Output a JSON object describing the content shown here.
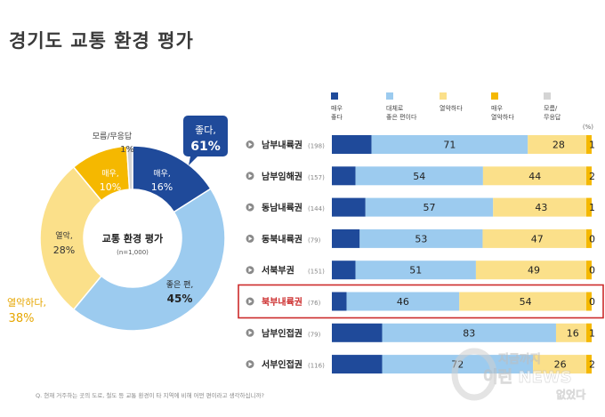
{
  "title": "경기도 교통 환경 평가",
  "footnote": "Q. 현재 거주하는 곳의 도로, 철도 등 교통 환경이 타 지역에 비해 어떤 편이라고 생각하십니까?",
  "watermark": {
    "line1": "지금까지",
    "line2": "이런 NEWS",
    "line3": "없었다"
  },
  "colors": {
    "very_good": "#1f4a9a",
    "good": "#9ccbef",
    "bad": "#fbe08a",
    "very_bad": "#f5b800",
    "dk": "#d4d4d4",
    "highlight": "#cc2b2b"
  },
  "chart_data": [
    {
      "type": "pie",
      "center_title": "교통 환경 평가",
      "center_sub": "(n=1,000)",
      "slices": [
        {
          "key": "very_good",
          "label": "매우,",
          "value": 16,
          "value_text": "16%"
        },
        {
          "key": "good",
          "label": "좋은 편,",
          "value": 45,
          "value_text": "45%"
        },
        {
          "key": "bad",
          "label": "열악,",
          "value": 28,
          "value_text": "28%"
        },
        {
          "key": "very_bad",
          "label": "매우,",
          "value": 10,
          "value_text": "10%"
        },
        {
          "key": "dk",
          "label": "모름/무응답",
          "value": 1,
          "value_text": "1%"
        }
      ],
      "callout_good": {
        "label": "좋다,",
        "value": "61%"
      },
      "callout_bad": {
        "label": "열악하다,",
        "value": "38%"
      }
    },
    {
      "type": "bar",
      "stacked": true,
      "orientation": "horizontal",
      "percent_label": "(%)",
      "legend": [
        {
          "key": "very_good",
          "label": [
            "매우",
            "좋다"
          ]
        },
        {
          "key": "good",
          "label": [
            "대체로",
            "좋은 편이다"
          ]
        },
        {
          "key": "bad",
          "label": [
            "열악하다"
          ]
        },
        {
          "key": "very_bad",
          "label": [
            "매우",
            "열악하다"
          ]
        },
        {
          "key": "dk",
          "label": [
            "모름/",
            "무응답"
          ]
        }
      ],
      "highlight_row": "북부내륙권",
      "rows": [
        {
          "name": "남부내륙권",
          "n": "(198)",
          "very_good": 18,
          "good": 71,
          "bad": 28,
          "very_bad": 0,
          "dk": 1,
          "good_label": "71",
          "bad_label": "28",
          "dk_label": "1"
        },
        {
          "name": "남부임해권",
          "n": "(157)",
          "very_good": 10,
          "good": 54,
          "bad": 44,
          "very_bad": 0,
          "dk": 2,
          "good_label": "54",
          "bad_label": "44",
          "dk_label": "2"
        },
        {
          "name": "동남내륙권",
          "n": "(144)",
          "very_good": 15,
          "good": 57,
          "bad": 43,
          "very_bad": 0,
          "dk": 1,
          "good_label": "57",
          "bad_label": "43",
          "dk_label": "1"
        },
        {
          "name": "동북내륙권",
          "n": "(79)",
          "very_good": 12,
          "good": 53,
          "bad": 47,
          "very_bad": 0,
          "dk": 0,
          "good_label": "53",
          "bad_label": "47",
          "dk_label": "0"
        },
        {
          "name": "서북부권",
          "n": "(151)",
          "very_good": 10,
          "good": 51,
          "bad": 49,
          "very_bad": 0,
          "dk": 0,
          "good_label": "51",
          "bad_label": "49",
          "dk_label": "0"
        },
        {
          "name": "북부내륙권",
          "n": "(76)",
          "very_good": 6,
          "good": 46,
          "bad": 54,
          "very_bad": 0,
          "dk": 0,
          "good_label": "46",
          "bad_label": "54",
          "dk_label": "0"
        },
        {
          "name": "남부인접권",
          "n": "(79)",
          "very_good": 24,
          "good": 83,
          "bad": 16,
          "very_bad": 0,
          "dk": 1,
          "good_label": "83",
          "bad_label": "16",
          "dk_label": "1"
        },
        {
          "name": "서부인접권",
          "n": "(116)",
          "very_good": 24,
          "good": 72,
          "bad": 26,
          "very_bad": 0,
          "dk": 2,
          "good_label": "72",
          "bad_label": "26",
          "dk_label": "2"
        }
      ]
    }
  ]
}
